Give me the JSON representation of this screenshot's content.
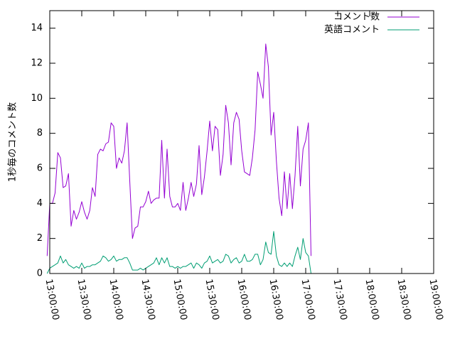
{
  "chart_data": {
    "type": "line",
    "ylabel": "1秒毎のコメント数",
    "xlabel": "",
    "xlim": [
      "13:00:00",
      "19:00:00"
    ],
    "ylim": [
      0,
      15
    ],
    "y_ticks": [
      0,
      2,
      4,
      6,
      8,
      10,
      12,
      14
    ],
    "x_ticks": [
      "13:00:00",
      "13:30:00",
      "14:00:00",
      "14:30:00",
      "15:00:00",
      "15:30:00",
      "16:00:00",
      "16:30:00",
      "17:00:00",
      "17:30:00",
      "18:00:00",
      "18:30:00",
      "19:00:00"
    ],
    "legend_position": "top-right",
    "grid": false,
    "series": [
      {
        "name": "コメント数",
        "color": "#9400d3",
        "points": [
          [
            "12:57:30",
            1.0
          ],
          [
            "13:00:00",
            4.0
          ],
          [
            "13:02:30",
            4.0
          ],
          [
            "13:05:00",
            4.6
          ],
          [
            "13:07:30",
            6.9
          ],
          [
            "13:10:00",
            6.6
          ],
          [
            "13:12:30",
            4.9
          ],
          [
            "13:15:00",
            5.0
          ],
          [
            "13:17:30",
            5.7
          ],
          [
            "13:20:00",
            2.7
          ],
          [
            "13:22:30",
            3.6
          ],
          [
            "13:25:00",
            3.1
          ],
          [
            "13:27:30",
            3.5
          ],
          [
            "13:30:00",
            4.1
          ],
          [
            "13:32:30",
            3.5
          ],
          [
            "13:35:00",
            3.1
          ],
          [
            "13:37:30",
            3.6
          ],
          [
            "13:40:00",
            4.9
          ],
          [
            "13:42:30",
            4.4
          ],
          [
            "13:45:00",
            6.8
          ],
          [
            "13:47:30",
            7.1
          ],
          [
            "13:50:00",
            7.0
          ],
          [
            "13:52:30",
            7.4
          ],
          [
            "13:55:00",
            7.5
          ],
          [
            "13:57:30",
            8.6
          ],
          [
            "14:00:00",
            8.4
          ],
          [
            "14:02:30",
            6.0
          ],
          [
            "14:05:00",
            6.6
          ],
          [
            "14:07:30",
            6.3
          ],
          [
            "14:10:00",
            7.0
          ],
          [
            "14:12:30",
            8.6
          ],
          [
            "14:15:00",
            5.3
          ],
          [
            "14:17:30",
            2.0
          ],
          [
            "14:20:00",
            2.6
          ],
          [
            "14:22:30",
            2.7
          ],
          [
            "14:25:00",
            3.8
          ],
          [
            "14:27:30",
            3.8
          ],
          [
            "14:30:00",
            4.1
          ],
          [
            "14:32:30",
            4.7
          ],
          [
            "14:35:00",
            4.0
          ],
          [
            "14:37:30",
            4.2
          ],
          [
            "14:40:00",
            4.3
          ],
          [
            "14:42:30",
            4.3
          ],
          [
            "14:45:00",
            7.6
          ],
          [
            "14:47:30",
            4.3
          ],
          [
            "14:50:00",
            7.1
          ],
          [
            "14:52:30",
            4.4
          ],
          [
            "14:55:00",
            3.8
          ],
          [
            "14:57:30",
            3.8
          ],
          [
            "15:00:00",
            4.0
          ],
          [
            "15:02:30",
            3.6
          ],
          [
            "15:05:00",
            5.2
          ],
          [
            "15:07:30",
            3.6
          ],
          [
            "15:10:00",
            4.3
          ],
          [
            "15:12:30",
            5.2
          ],
          [
            "15:15:00",
            4.4
          ],
          [
            "15:17:30",
            5.1
          ],
          [
            "15:20:00",
            7.3
          ],
          [
            "15:22:30",
            4.5
          ],
          [
            "15:25:00",
            5.5
          ],
          [
            "15:27:30",
            7.0
          ],
          [
            "15:30:00",
            8.7
          ],
          [
            "15:32:30",
            7.0
          ],
          [
            "15:35:00",
            8.4
          ],
          [
            "15:37:30",
            8.2
          ],
          [
            "15:40:00",
            5.6
          ],
          [
            "15:42:30",
            6.8
          ],
          [
            "15:45:00",
            9.6
          ],
          [
            "15:47:30",
            8.6
          ],
          [
            "15:50:00",
            6.2
          ],
          [
            "15:52:30",
            8.6
          ],
          [
            "15:55:00",
            9.2
          ],
          [
            "15:57:30",
            8.8
          ],
          [
            "16:00:00",
            7.0
          ],
          [
            "16:02:30",
            5.8
          ],
          [
            "16:05:00",
            5.7
          ],
          [
            "16:07:30",
            5.6
          ],
          [
            "16:10:00",
            6.6
          ],
          [
            "16:12:30",
            8.2
          ],
          [
            "16:15:00",
            11.5
          ],
          [
            "16:17:30",
            10.8
          ],
          [
            "16:20:00",
            10.0
          ],
          [
            "16:22:30",
            13.1
          ],
          [
            "16:25:00",
            11.8
          ],
          [
            "16:27:30",
            7.9
          ],
          [
            "16:30:00",
            9.2
          ],
          [
            "16:32:30",
            6.4
          ],
          [
            "16:35:00",
            4.3
          ],
          [
            "16:37:30",
            3.3
          ],
          [
            "16:40:00",
            5.8
          ],
          [
            "16:42:30",
            3.7
          ],
          [
            "16:45:00",
            5.7
          ],
          [
            "16:47:30",
            3.7
          ],
          [
            "16:50:00",
            5.6
          ],
          [
            "16:52:30",
            8.4
          ],
          [
            "16:55:00",
            5.0
          ],
          [
            "16:57:30",
            7.1
          ],
          [
            "17:00:00",
            7.6
          ],
          [
            "17:02:30",
            8.6
          ],
          [
            "17:05:00",
            1.0
          ]
        ]
      },
      {
        "name": "英語コメント",
        "color": "#009e73",
        "points": [
          [
            "12:57:30",
            0.0
          ],
          [
            "13:00:00",
            0.3
          ],
          [
            "13:02:30",
            0.4
          ],
          [
            "13:05:00",
            0.5
          ],
          [
            "13:07:30",
            0.6
          ],
          [
            "13:10:00",
            1.0
          ],
          [
            "13:12:30",
            0.6
          ],
          [
            "13:15:00",
            0.8
          ],
          [
            "13:17:30",
            0.5
          ],
          [
            "13:20:00",
            0.4
          ],
          [
            "13:22:30",
            0.3
          ],
          [
            "13:25:00",
            0.4
          ],
          [
            "13:27:30",
            0.3
          ],
          [
            "13:30:00",
            0.6
          ],
          [
            "13:32:30",
            0.3
          ],
          [
            "13:35:00",
            0.4
          ],
          [
            "13:37:30",
            0.4
          ],
          [
            "13:40:00",
            0.5
          ],
          [
            "13:42:30",
            0.5
          ],
          [
            "13:45:00",
            0.6
          ],
          [
            "13:47:30",
            0.7
          ],
          [
            "13:50:00",
            1.0
          ],
          [
            "13:52:30",
            0.9
          ],
          [
            "13:55:00",
            0.7
          ],
          [
            "13:57:30",
            0.8
          ],
          [
            "14:00:00",
            1.0
          ],
          [
            "14:02:30",
            0.7
          ],
          [
            "14:05:00",
            0.8
          ],
          [
            "14:07:30",
            0.8
          ],
          [
            "14:10:00",
            0.9
          ],
          [
            "14:12:30",
            0.9
          ],
          [
            "14:15:00",
            0.6
          ],
          [
            "14:17:30",
            0.2
          ],
          [
            "14:20:00",
            0.2
          ],
          [
            "14:22:30",
            0.2
          ],
          [
            "14:25:00",
            0.3
          ],
          [
            "14:27:30",
            0.2
          ],
          [
            "14:30:00",
            0.3
          ],
          [
            "14:32:30",
            0.4
          ],
          [
            "14:35:00",
            0.5
          ],
          [
            "14:37:30",
            0.6
          ],
          [
            "14:40:00",
            0.9
          ],
          [
            "14:42:30",
            0.5
          ],
          [
            "14:45:00",
            0.9
          ],
          [
            "14:47:30",
            0.6
          ],
          [
            "14:50:00",
            0.9
          ],
          [
            "14:52:30",
            0.4
          ],
          [
            "14:55:00",
            0.4
          ],
          [
            "14:57:30",
            0.3
          ],
          [
            "15:00:00",
            0.4
          ],
          [
            "15:02:30",
            0.3
          ],
          [
            "15:05:00",
            0.4
          ],
          [
            "15:07:30",
            0.4
          ],
          [
            "15:10:00",
            0.5
          ],
          [
            "15:12:30",
            0.6
          ],
          [
            "15:15:00",
            0.3
          ],
          [
            "15:17:30",
            0.6
          ],
          [
            "15:20:00",
            0.5
          ],
          [
            "15:22:30",
            0.3
          ],
          [
            "15:25:00",
            0.6
          ],
          [
            "15:27:30",
            0.7
          ],
          [
            "15:30:00",
            1.0
          ],
          [
            "15:32:30",
            0.6
          ],
          [
            "15:35:00",
            0.7
          ],
          [
            "15:37:30",
            0.8
          ],
          [
            "15:40:00",
            0.6
          ],
          [
            "15:42:30",
            0.7
          ],
          [
            "15:45:00",
            1.1
          ],
          [
            "15:47:30",
            1.0
          ],
          [
            "15:50:00",
            0.6
          ],
          [
            "15:52:30",
            0.8
          ],
          [
            "15:55:00",
            0.9
          ],
          [
            "15:57:30",
            0.6
          ],
          [
            "16:00:00",
            0.7
          ],
          [
            "16:02:30",
            1.1
          ],
          [
            "16:05:00",
            0.7
          ],
          [
            "16:07:30",
            0.7
          ],
          [
            "16:10:00",
            0.8
          ],
          [
            "16:12:30",
            1.1
          ],
          [
            "16:15:00",
            1.1
          ],
          [
            "16:17:30",
            0.5
          ],
          [
            "16:20:00",
            0.8
          ],
          [
            "16:22:30",
            1.8
          ],
          [
            "16:25:00",
            1.2
          ],
          [
            "16:27:30",
            1.1
          ],
          [
            "16:30:00",
            2.4
          ],
          [
            "16:32:30",
            1.0
          ],
          [
            "16:35:00",
            0.5
          ],
          [
            "16:37:30",
            0.4
          ],
          [
            "16:40:00",
            0.6
          ],
          [
            "16:42:30",
            0.4
          ],
          [
            "16:45:00",
            0.6
          ],
          [
            "16:47:30",
            0.4
          ],
          [
            "16:50:00",
            1.0
          ],
          [
            "16:52:30",
            1.5
          ],
          [
            "16:55:00",
            0.8
          ],
          [
            "16:57:30",
            2.0
          ],
          [
            "17:00:00",
            1.2
          ],
          [
            "17:02:30",
            1.0
          ],
          [
            "17:05:00",
            0.0
          ]
        ]
      }
    ]
  }
}
